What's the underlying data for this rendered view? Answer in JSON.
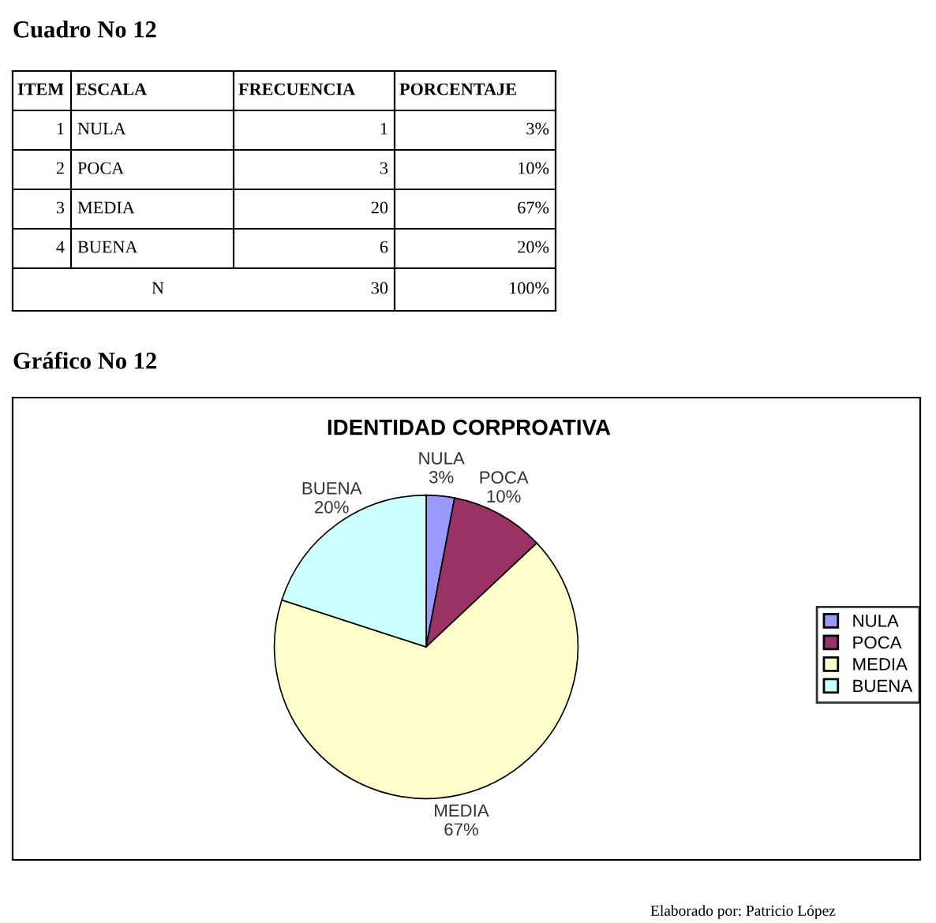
{
  "chart_data": {
    "type": "pie",
    "title": "IDENTIDAD CORPROATIVA",
    "categories": [
      "NULA",
      "POCA",
      "MEDIA",
      "BUENA"
    ],
    "values": [
      3,
      10,
      67,
      20
    ],
    "value_labels": [
      "3%",
      "10%",
      "67%",
      "20%"
    ],
    "colors": [
      "#9999ff",
      "#993366",
      "#ffffcc",
      "#ccffff"
    ],
    "legend": "right",
    "annotations": [
      "Cuadro No 12",
      "ITEM",
      "ESCALA",
      "FRECUENCIA",
      "PORCENTAJE",
      "1",
      "NULA",
      "1",
      "3%",
      "2",
      "POCA",
      "3",
      "10%",
      "3",
      "MEDIA",
      "20",
      "67%",
      "4",
      "BUENA",
      "6",
      "20%",
      "N",
      "30",
      "100%",
      "Gráfico No 12",
      "Elaborado por: Patricio López"
    ]
  }
}
